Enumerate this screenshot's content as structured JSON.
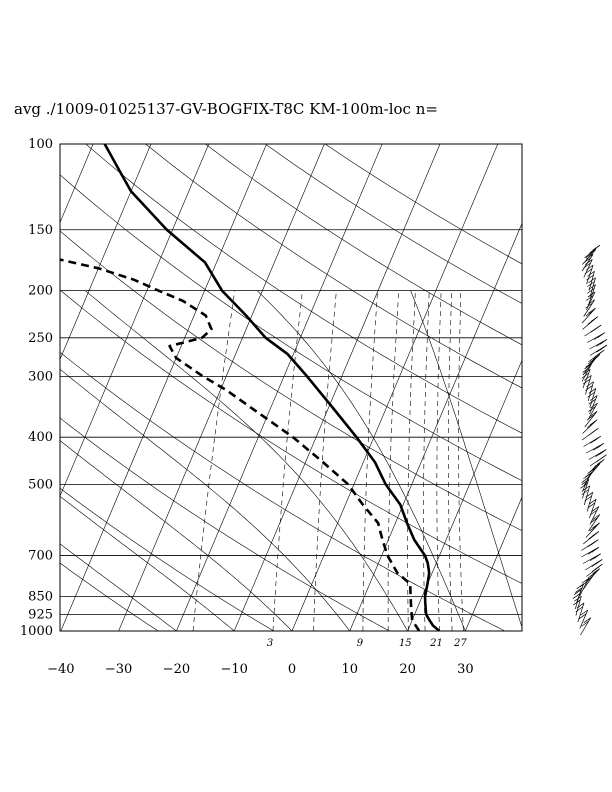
{
  "chart_data": {
    "type": "skew-t",
    "title": "avg ./1009-01025137-GV-BOGFIX-T8C KM-100m-loc n=",
    "xlabel": "",
    "ylabel": "",
    "pressure_ticks": [
      "100",
      "150",
      "200",
      "250",
      "300",
      "400",
      "500",
      "700",
      "850",
      "925",
      "1000"
    ],
    "pressure_values": [
      100,
      150,
      200,
      250,
      300,
      400,
      500,
      700,
      850,
      925,
      1000
    ],
    "temperature_ticks": [
      "−40",
      "−30",
      "−20",
      "−10",
      "0",
      "10",
      "20",
      "30"
    ],
    "temperature_values": [
      -40,
      -30,
      -20,
      -10,
      0,
      10,
      20,
      30
    ],
    "xlim": [
      -40,
      40
    ],
    "plim": [
      1000,
      100
    ],
    "mixing_ratio_labels": [
      "3",
      "9",
      "15",
      "21",
      "27"
    ],
    "mixing_ratio_values": [
      3,
      9,
      15,
      21,
      27
    ],
    "grid": true,
    "series": [
      {
        "kind": "temperature",
        "style": "solid",
        "points": [
          {
            "p": 1000,
            "t": 25.5
          },
          {
            "p": 975,
            "t": 24
          },
          {
            "p": 950,
            "t": 23
          },
          {
            "p": 925,
            "t": 22
          },
          {
            "p": 900,
            "t": 21.5
          },
          {
            "p": 875,
            "t": 21
          },
          {
            "p": 850,
            "t": 20.5
          },
          {
            "p": 800,
            "t": 20
          },
          {
            "p": 760,
            "t": 19.5
          },
          {
            "p": 725,
            "t": 18.5
          },
          {
            "p": 700,
            "t": 17.5
          },
          {
            "p": 650,
            "t": 14.5
          },
          {
            "p": 600,
            "t": 12
          },
          {
            "p": 550,
            "t": 9.5
          },
          {
            "p": 500,
            "t": 5.5
          },
          {
            "p": 450,
            "t": 2
          },
          {
            "p": 400,
            "t": -3
          },
          {
            "p": 350,
            "t": -9
          },
          {
            "p": 300,
            "t": -16
          },
          {
            "p": 270,
            "t": -21
          },
          {
            "p": 250,
            "t": -26
          },
          {
            "p": 225,
            "t": -31
          },
          {
            "p": 200,
            "t": -37
          },
          {
            "p": 175,
            "t": -42
          },
          {
            "p": 150,
            "t": -51
          },
          {
            "p": 125,
            "t": -60
          },
          {
            "p": 115,
            "t": -63
          },
          {
            "p": 100,
            "t": -68
          }
        ]
      },
      {
        "kind": "dewpoint",
        "style": "dashed",
        "points": [
          {
            "p": 1000,
            "t": 22
          },
          {
            "p": 950,
            "t": 20
          },
          {
            "p": 900,
            "t": 19
          },
          {
            "p": 850,
            "t": 18
          },
          {
            "p": 800,
            "t": 17
          },
          {
            "p": 760,
            "t": 14
          },
          {
            "p": 700,
            "t": 11
          },
          {
            "p": 650,
            "t": 9
          },
          {
            "p": 600,
            "t": 7
          },
          {
            "p": 550,
            "t": 3
          },
          {
            "p": 500,
            "t": -1
          },
          {
            "p": 450,
            "t": -7
          },
          {
            "p": 400,
            "t": -14
          },
          {
            "p": 350,
            "t": -23
          },
          {
            "p": 320,
            "t": -29
          },
          {
            "p": 300,
            "t": -34
          },
          {
            "p": 275,
            "t": -40
          },
          {
            "p": 260,
            "t": -42
          },
          {
            "p": 250,
            "t": -37
          },
          {
            "p": 240,
            "t": -36
          },
          {
            "p": 225,
            "t": -38
          },
          {
            "p": 210,
            "t": -43
          },
          {
            "p": 200,
            "t": -48
          },
          {
            "p": 190,
            "t": -53
          },
          {
            "p": 180,
            "t": -60
          },
          {
            "p": 172,
            "t": -68
          },
          {
            "p": 168,
            "t": -75
          },
          {
            "p": 165,
            "t": -80
          }
        ]
      }
    ]
  }
}
